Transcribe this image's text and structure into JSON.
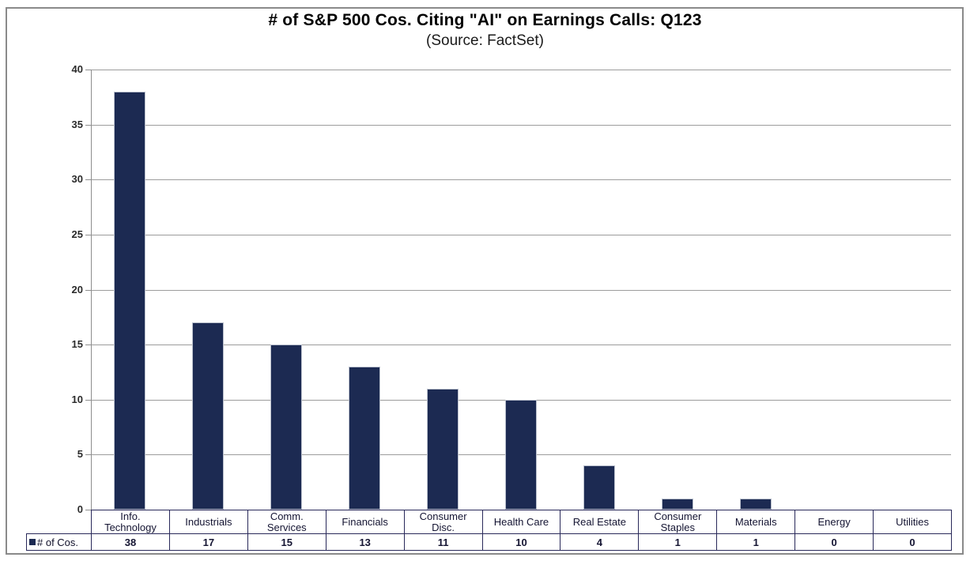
{
  "chart_data": {
    "type": "bar",
    "title": "# of S&P 500 Cos. Citing \"AI\" on Earnings Calls: Q123",
    "subtitle": "(Source: FactSet)",
    "legend_label": "# of Cos.",
    "categories": [
      "Info.\nTechnology",
      "Industrials",
      "Comm.\nServices",
      "Financials",
      "Consumer\nDisc.",
      "Health Care",
      "Real Estate",
      "Consumer\nStaples",
      "Materials",
      "Energy",
      "Utilities"
    ],
    "series": [
      {
        "name": "# of Cos.",
        "values": [
          38,
          17,
          15,
          13,
          11,
          10,
          4,
          1,
          1,
          0,
          0
        ]
      }
    ],
    "ylim": [
      0,
      40
    ],
    "yticks": [
      0,
      5,
      10,
      15,
      20,
      25,
      30,
      35,
      40
    ],
    "grid": "horizontal",
    "legend_position": "bottom-left-table",
    "data_table_shown": true,
    "colors": {
      "bar": "#1c2a52",
      "gridline": "#9c9c9c",
      "axis": "#8e8e8e",
      "table_border": "#29295a",
      "outer_border": "#8a8a8a",
      "text": "#000000"
    }
  }
}
